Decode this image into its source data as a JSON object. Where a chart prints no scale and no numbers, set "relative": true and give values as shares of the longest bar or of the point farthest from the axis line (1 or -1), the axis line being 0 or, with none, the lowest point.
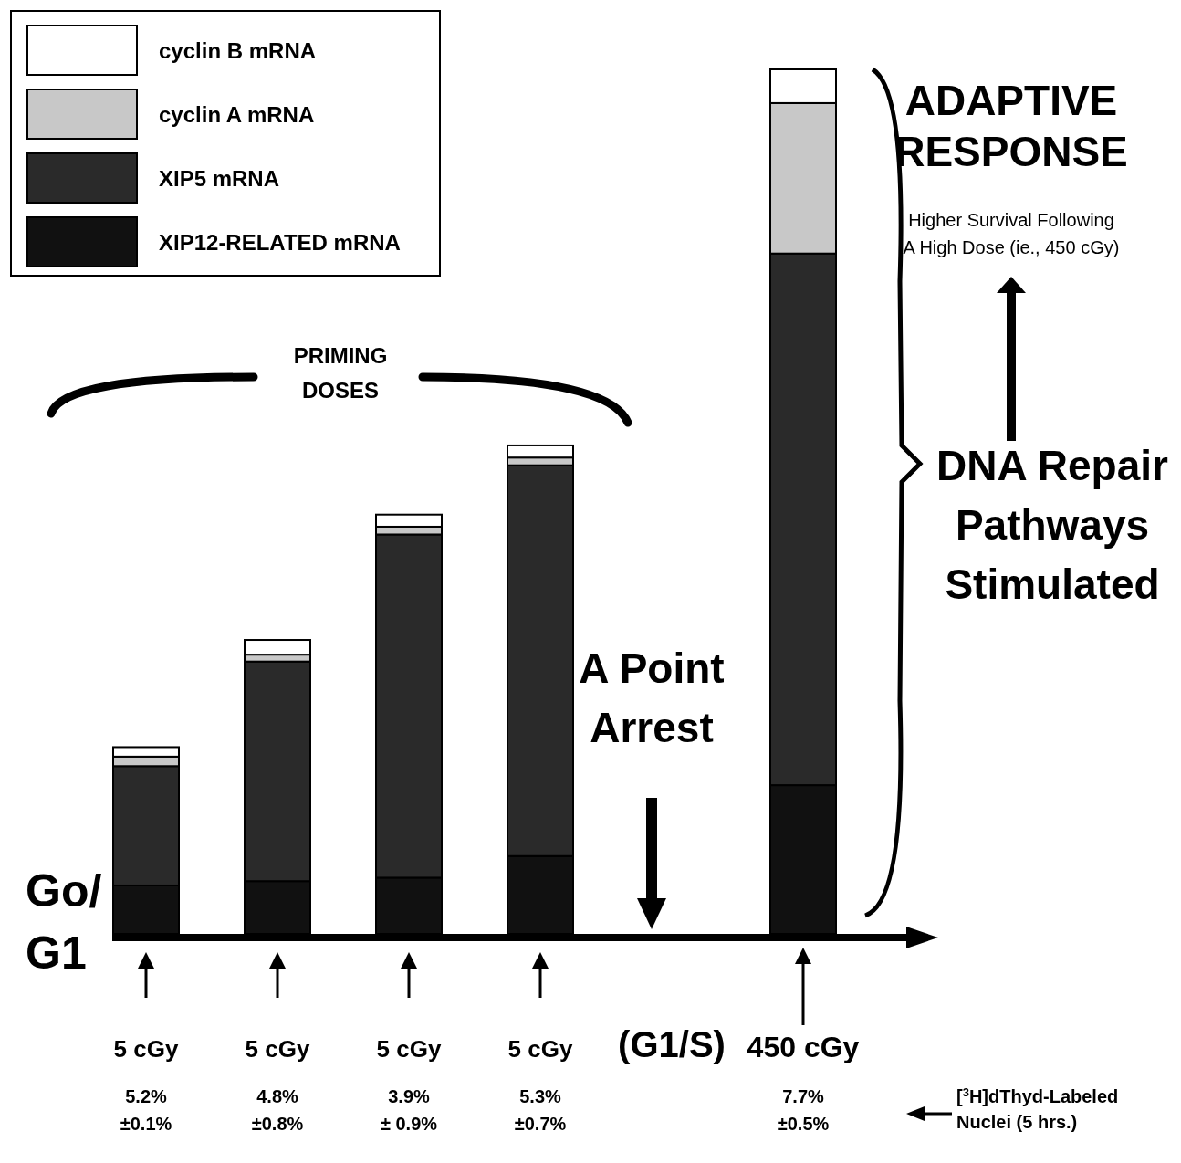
{
  "chart_data": {
    "type": "bar",
    "stacked": true,
    "relative": true,
    "legend": "top left",
    "categories": [
      "5 cGy",
      "5 cGy",
      "5 cGy",
      "5 cGy",
      "(G1/S)",
      "450 cGy"
    ],
    "series": [
      {
        "name": "XIP12-RELATED mRNA",
        "color": "#111111",
        "values": [
          0.056,
          0.061,
          0.065,
          0.09,
          null,
          0.172
        ]
      },
      {
        "name": "XIP5 mRNA",
        "color": "#2a2a2a",
        "values": [
          0.138,
          0.254,
          0.397,
          0.452,
          null,
          0.615
        ]
      },
      {
        "name": "cyclin A mRNA",
        "color": "#c8c8c8",
        "values": [
          0.011,
          0.008,
          0.009,
          0.009,
          null,
          0.174
        ]
      },
      {
        "name": "cyclin B mRNA",
        "color": "#ffffff",
        "values": [
          0.011,
          0.017,
          0.014,
          0.014,
          null,
          0.039
        ]
      }
    ],
    "annotations": [
      "5.2% ±0.1%",
      "4.8% ±0.8%",
      "3.9% ± 0.9%",
      "5.3% ±0.7%",
      "7.7% ±0.5%",
      "[$^{3}$H]dThyd-Labeled Nuclei (5 hrs.)",
      "PRIMING DOSES",
      "ADAPTIVE RESPONSE",
      "Higher Survival Following A High Dose (ie., 450 cGy)",
      "DNA Repair Pathways Stimulated",
      "A Point Arrest",
      "Go/ G1"
    ]
  }
}
